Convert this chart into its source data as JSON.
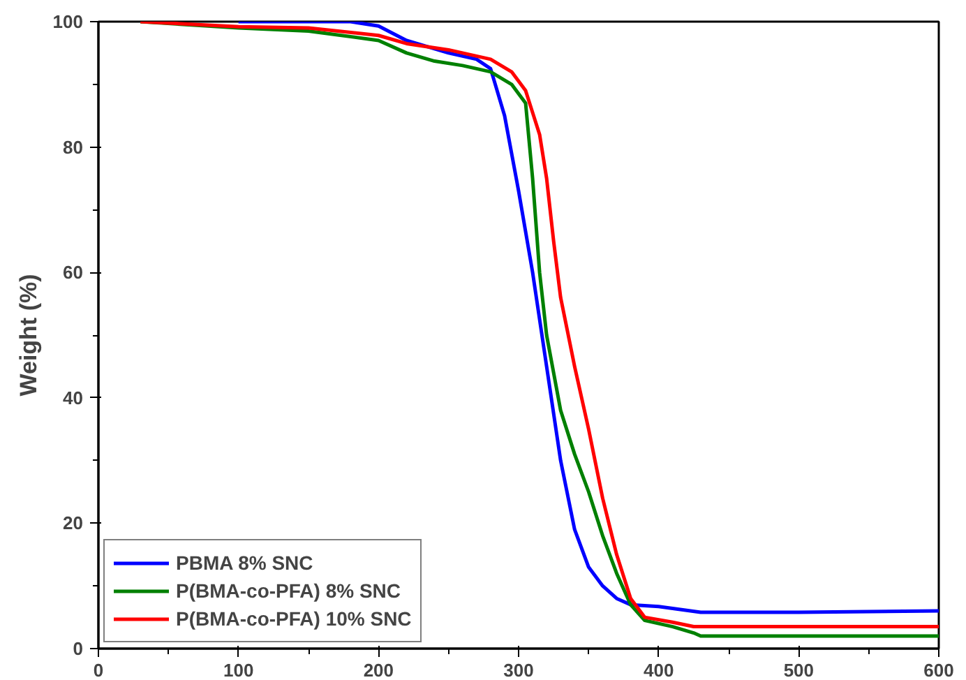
{
  "chart_data": {
    "type": "line",
    "ylabel": "Weight (%)",
    "xlim": [
      0,
      600
    ],
    "ylim": [
      0,
      100
    ],
    "xticks": [
      0,
      100,
      200,
      300,
      400,
      500,
      600
    ],
    "yticks": [
      0,
      20,
      40,
      60,
      80,
      100
    ],
    "grid": false,
    "legend": "bottom left",
    "line_style": "solid",
    "marker": "none",
    "series": [
      {
        "name": "PBMA 8% SNC",
        "color": "#0000ff",
        "x": [
          100,
          180,
          200,
          220,
          250,
          270,
          280,
          290,
          300,
          310,
          320,
          330,
          340,
          350,
          360,
          370,
          380,
          400,
          430,
          500,
          600
        ],
        "values": [
          100,
          100,
          99.3,
          97,
          95,
          94,
          92.5,
          85,
          73,
          60,
          45,
          30,
          19,
          13,
          10,
          8,
          7,
          6.7,
          5.8,
          5.8,
          6.0
        ]
      },
      {
        "name": "P(BMA-co-PFA) 8% SNC",
        "color": "#008000",
        "x": [
          30,
          100,
          150,
          200,
          220,
          240,
          260,
          280,
          295,
          305,
          310,
          315,
          320,
          330,
          340,
          350,
          360,
          370,
          380,
          390,
          410,
          425,
          430,
          500,
          600
        ],
        "values": [
          100,
          99,
          98.5,
          97,
          95,
          93.7,
          93,
          92,
          90,
          87,
          75,
          60,
          50,
          38,
          31,
          25,
          18,
          12,
          7,
          4.5,
          3.5,
          2.5,
          2.0,
          2.0,
          2.0
        ]
      },
      {
        "name": "P(BMA-co-PFA) 10% SNC",
        "color": "#ff0000",
        "x": [
          30,
          100,
          150,
          200,
          220,
          250,
          280,
          295,
          305,
          315,
          320,
          325,
          330,
          340,
          350,
          360,
          370,
          380,
          390,
          410,
          425,
          450,
          600
        ],
        "values": [
          100,
          99.2,
          99,
          97.8,
          96.5,
          95.5,
          94,
          92,
          89,
          82,
          75,
          65,
          56,
          45,
          35,
          24,
          15,
          8,
          5,
          4.2,
          3.5,
          3.5,
          3.5
        ]
      }
    ]
  }
}
